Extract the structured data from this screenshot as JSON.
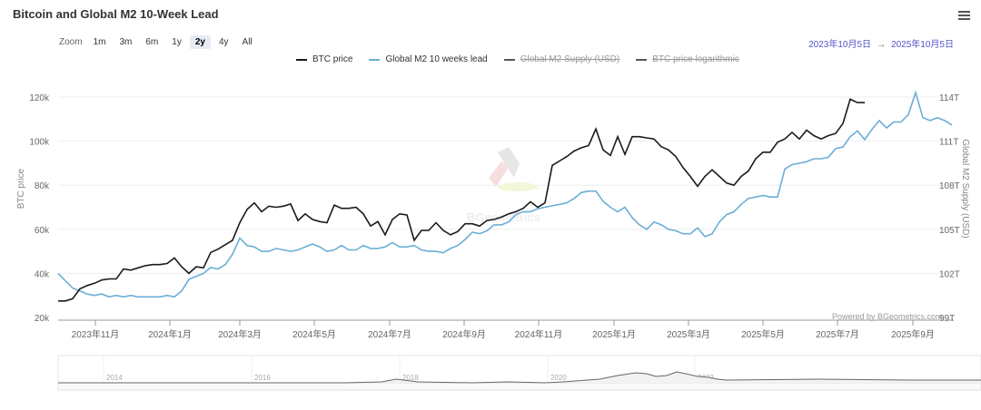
{
  "header": {
    "title": "Bitcoin and Global M2 10-Week Lead",
    "menu_icon": "hamburger-menu-icon"
  },
  "zoom": {
    "label": "Zoom",
    "buttons": [
      "1m",
      "3m",
      "6m",
      "1y",
      "2y",
      "4y",
      "All"
    ],
    "active": "2y"
  },
  "range": {
    "from": "2023年10月5日",
    "arrow": "→",
    "to": "2025年10月5日"
  },
  "legend": [
    {
      "label": "BTC price",
      "color": "#1a1a1a",
      "visible": true
    },
    {
      "label": "Global M2 10 weeks lead",
      "color": "#6baed6",
      "visible": true
    },
    {
      "label": "Global M2 Supply (USD)",
      "color": "#555555",
      "visible": false
    },
    {
      "label": "BTC price logarithmic",
      "color": "#555555",
      "visible": false
    }
  ],
  "credit": "Powered by BGeometrics.com",
  "watermark": "BGeometrics",
  "navigator": {
    "labels": [
      "2014",
      "2016",
      "2018",
      "2020",
      "2022"
    ]
  },
  "chart_data": {
    "type": "line",
    "title": "Bitcoin and Global M2 10-Week Lead",
    "xlabel": "",
    "ylabel": "BTC price",
    "y2label": "Global M2 Supply (USD)",
    "ylim": [
      20000,
      120000
    ],
    "y2lim": [
      99,
      114
    ],
    "y_ticks": [
      "20k",
      "40k",
      "60k",
      "80k",
      "100k",
      "120k"
    ],
    "y2_ticks": [
      "99T",
      "102T",
      "105T",
      "108T",
      "111T",
      "114T"
    ],
    "x_ticks": [
      "2023年11月",
      "2024年1月",
      "2024年3月",
      "2024年5月",
      "2024年7月",
      "2024年9月",
      "2024年11月",
      "2025年1月",
      "2025年3月",
      "2025年5月",
      "2025年7月",
      "2025年9月"
    ],
    "grid": true,
    "legend_position": "top",
    "series": [
      {
        "name": "BTC price",
        "axis": "left",
        "color": "#1a1a1a",
        "points": [
          [
            64,
            27500
          ],
          [
            72,
            27500
          ],
          [
            80,
            28500
          ],
          [
            88,
            33000
          ],
          [
            96,
            34500
          ],
          [
            104,
            35500
          ],
          [
            112,
            37000
          ],
          [
            120,
            37500
          ],
          [
            128,
            37500
          ],
          [
            136,
            42000
          ],
          [
            144,
            41500
          ],
          [
            152,
            42500
          ],
          [
            160,
            43500
          ],
          [
            168,
            44000
          ],
          [
            176,
            44000
          ],
          [
            184,
            44500
          ],
          [
            192,
            47000
          ],
          [
            200,
            43000
          ],
          [
            208,
            40000
          ],
          [
            216,
            43000
          ],
          [
            224,
            42500
          ],
          [
            232,
            49500
          ],
          [
            240,
            51000
          ],
          [
            248,
            53000
          ],
          [
            256,
            55000
          ],
          [
            264,
            63000
          ],
          [
            272,
            69000
          ],
          [
            280,
            72000
          ],
          [
            288,
            68000
          ],
          [
            296,
            70500
          ],
          [
            304,
            70000
          ],
          [
            312,
            70500
          ],
          [
            320,
            71500
          ],
          [
            328,
            64000
          ],
          [
            336,
            67000
          ],
          [
            344,
            64500
          ],
          [
            352,
            63500
          ],
          [
            360,
            63000
          ],
          [
            368,
            71000
          ],
          [
            376,
            69500
          ],
          [
            384,
            69500
          ],
          [
            392,
            70000
          ],
          [
            400,
            67000
          ],
          [
            408,
            61500
          ],
          [
            416,
            63500
          ],
          [
            424,
            57500
          ],
          [
            432,
            64500
          ],
          [
            440,
            67000
          ],
          [
            448,
            66500
          ],
          [
            456,
            55000
          ],
          [
            464,
            59500
          ],
          [
            472,
            59500
          ],
          [
            480,
            63000
          ],
          [
            488,
            59500
          ],
          [
            496,
            57500
          ],
          [
            504,
            59000
          ],
          [
            512,
            62500
          ],
          [
            520,
            62500
          ],
          [
            528,
            61500
          ],
          [
            536,
            64000
          ],
          [
            544,
            64500
          ],
          [
            552,
            65500
          ],
          [
            560,
            67000
          ],
          [
            568,
            68000
          ],
          [
            576,
            69500
          ],
          [
            584,
            72500
          ],
          [
            592,
            70000
          ],
          [
            600,
            72000
          ],
          [
            608,
            89000
          ],
          [
            616,
            91000
          ],
          [
            624,
            93000
          ],
          [
            632,
            95500
          ],
          [
            640,
            97000
          ],
          [
            648,
            98000
          ],
          [
            656,
            105500
          ],
          [
            664,
            96000
          ],
          [
            672,
            93500
          ],
          [
            680,
            102000
          ],
          [
            688,
            94000
          ],
          [
            696,
            102000
          ],
          [
            704,
            102000
          ],
          [
            712,
            101500
          ],
          [
            720,
            101000
          ],
          [
            728,
            97500
          ],
          [
            736,
            96000
          ],
          [
            744,
            93000
          ],
          [
            752,
            88000
          ],
          [
            760,
            84000
          ],
          [
            768,
            79500
          ],
          [
            776,
            84000
          ],
          [
            784,
            87000
          ],
          [
            792,
            84000
          ],
          [
            800,
            81000
          ],
          [
            808,
            80000
          ],
          [
            816,
            84000
          ],
          [
            824,
            86500
          ],
          [
            832,
            92000
          ],
          [
            840,
            95000
          ],
          [
            848,
            95000
          ],
          [
            856,
            99500
          ],
          [
            864,
            101000
          ],
          [
            872,
            104000
          ],
          [
            880,
            101000
          ],
          [
            888,
            105000
          ],
          [
            896,
            102500
          ],
          [
            904,
            101000
          ],
          [
            912,
            102500
          ],
          [
            920,
            103500
          ],
          [
            928,
            108000
          ],
          [
            936,
            119000
          ],
          [
            944,
            117500
          ],
          [
            952,
            117500
          ]
        ]
      },
      {
        "name": "Global M2 10 weeks lead",
        "axis": "right",
        "color": "#6baed6",
        "points": [
          [
            64,
            102.0
          ],
          [
            72,
            101.5
          ],
          [
            80,
            101.0
          ],
          [
            88,
            100.8
          ],
          [
            96,
            100.6
          ],
          [
            104,
            100.5
          ],
          [
            112,
            100.6
          ],
          [
            120,
            100.4
          ],
          [
            128,
            100.5
          ],
          [
            136,
            100.4
          ],
          [
            144,
            100.5
          ],
          [
            152,
            100.4
          ],
          [
            160,
            100.4
          ],
          [
            168,
            100.4
          ],
          [
            176,
            100.4
          ],
          [
            184,
            100.5
          ],
          [
            192,
            100.4
          ],
          [
            200,
            100.8
          ],
          [
            208,
            101.6
          ],
          [
            216,
            101.8
          ],
          [
            224,
            102.0
          ],
          [
            232,
            102.4
          ],
          [
            240,
            102.3
          ],
          [
            248,
            102.6
          ],
          [
            256,
            103.3
          ],
          [
            264,
            104.4
          ],
          [
            272,
            103.9
          ],
          [
            280,
            103.8
          ],
          [
            288,
            103.5
          ],
          [
            296,
            103.5
          ],
          [
            304,
            103.7
          ],
          [
            312,
            103.6
          ],
          [
            320,
            103.5
          ],
          [
            328,
            103.6
          ],
          [
            336,
            103.8
          ],
          [
            344,
            104.0
          ],
          [
            352,
            103.8
          ],
          [
            360,
            103.5
          ],
          [
            368,
            103.6
          ],
          [
            376,
            103.9
          ],
          [
            384,
            103.6
          ],
          [
            392,
            103.6
          ],
          [
            400,
            103.9
          ],
          [
            408,
            103.7
          ],
          [
            416,
            103.7
          ],
          [
            424,
            103.8
          ],
          [
            432,
            104.1
          ],
          [
            440,
            103.8
          ],
          [
            448,
            103.8
          ],
          [
            456,
            103.9
          ],
          [
            464,
            103.6
          ],
          [
            472,
            103.5
          ],
          [
            480,
            103.5
          ],
          [
            488,
            103.4
          ],
          [
            496,
            103.7
          ],
          [
            504,
            103.9
          ],
          [
            512,
            104.3
          ],
          [
            520,
            104.8
          ],
          [
            528,
            104.7
          ],
          [
            536,
            104.9
          ],
          [
            544,
            105.3
          ],
          [
            552,
            105.3
          ],
          [
            560,
            105.5
          ],
          [
            568,
            106.0
          ],
          [
            576,
            106.2
          ],
          [
            584,
            106.2
          ],
          [
            592,
            106.4
          ],
          [
            600,
            106.5
          ],
          [
            608,
            106.6
          ],
          [
            616,
            106.7
          ],
          [
            624,
            106.8
          ],
          [
            632,
            107.1
          ],
          [
            640,
            107.5
          ],
          [
            648,
            107.6
          ],
          [
            656,
            107.6
          ],
          [
            664,
            106.9
          ],
          [
            672,
            106.5
          ],
          [
            680,
            106.2
          ],
          [
            688,
            106.5
          ],
          [
            696,
            105.8
          ],
          [
            704,
            105.3
          ],
          [
            712,
            105.0
          ],
          [
            720,
            105.5
          ],
          [
            728,
            105.3
          ],
          [
            736,
            105.0
          ],
          [
            744,
            104.9
          ],
          [
            752,
            104.7
          ],
          [
            760,
            104.7
          ],
          [
            768,
            105.1
          ],
          [
            776,
            104.5
          ],
          [
            784,
            104.7
          ],
          [
            792,
            105.5
          ],
          [
            800,
            106.0
          ],
          [
            808,
            106.2
          ],
          [
            816,
            106.7
          ],
          [
            824,
            107.1
          ],
          [
            832,
            107.2
          ],
          [
            840,
            107.3
          ],
          [
            848,
            107.2
          ],
          [
            856,
            107.2
          ],
          [
            864,
            109.1
          ],
          [
            872,
            109.4
          ],
          [
            880,
            109.5
          ],
          [
            888,
            109.6
          ],
          [
            896,
            109.8
          ],
          [
            904,
            109.8
          ],
          [
            912,
            109.9
          ],
          [
            920,
            110.5
          ],
          [
            928,
            110.6
          ],
          [
            936,
            111.3
          ],
          [
            944,
            111.7
          ],
          [
            952,
            111.1
          ],
          [
            960,
            111.8
          ],
          [
            968,
            112.4
          ],
          [
            976,
            111.9
          ],
          [
            984,
            112.3
          ],
          [
            992,
            112.3
          ],
          [
            1000,
            112.8
          ],
          [
            1008,
            114.3
          ],
          [
            1016,
            112.6
          ],
          [
            1024,
            112.4
          ],
          [
            1032,
            112.6
          ],
          [
            1040,
            112.4
          ],
          [
            1048,
            112.1
          ]
        ]
      }
    ]
  }
}
